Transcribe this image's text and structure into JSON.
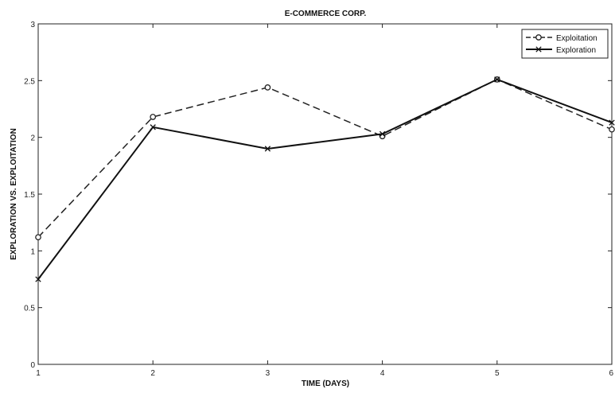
{
  "chart_data": {
    "type": "line",
    "title": "E-COMMERCE CORP.",
    "xlabel": "TIME (DAYS)",
    "ylabel": "EXPLORATION VS. EXPLOITATION",
    "x": [
      1,
      2,
      3,
      4,
      5,
      6
    ],
    "xlim": [
      1,
      6
    ],
    "ylim": [
      0,
      3
    ],
    "xticks": [
      "1",
      "2",
      "3",
      "4",
      "5",
      "6"
    ],
    "yticks": [
      "0",
      "0.5",
      "1",
      "1.5",
      "2",
      "2.5",
      "3"
    ],
    "grid": false,
    "legend_position": "top-right",
    "series": [
      {
        "name": "Exploitation",
        "values": [
          1.12,
          2.18,
          2.44,
          2.01,
          2.51,
          2.07
        ],
        "line_style": "dashed",
        "marker": "circle",
        "color": "#222222"
      },
      {
        "name": "Exploration",
        "values": [
          0.75,
          2.09,
          1.9,
          2.03,
          2.51,
          2.13
        ],
        "line_style": "solid",
        "marker": "x",
        "color": "#111111"
      }
    ]
  }
}
